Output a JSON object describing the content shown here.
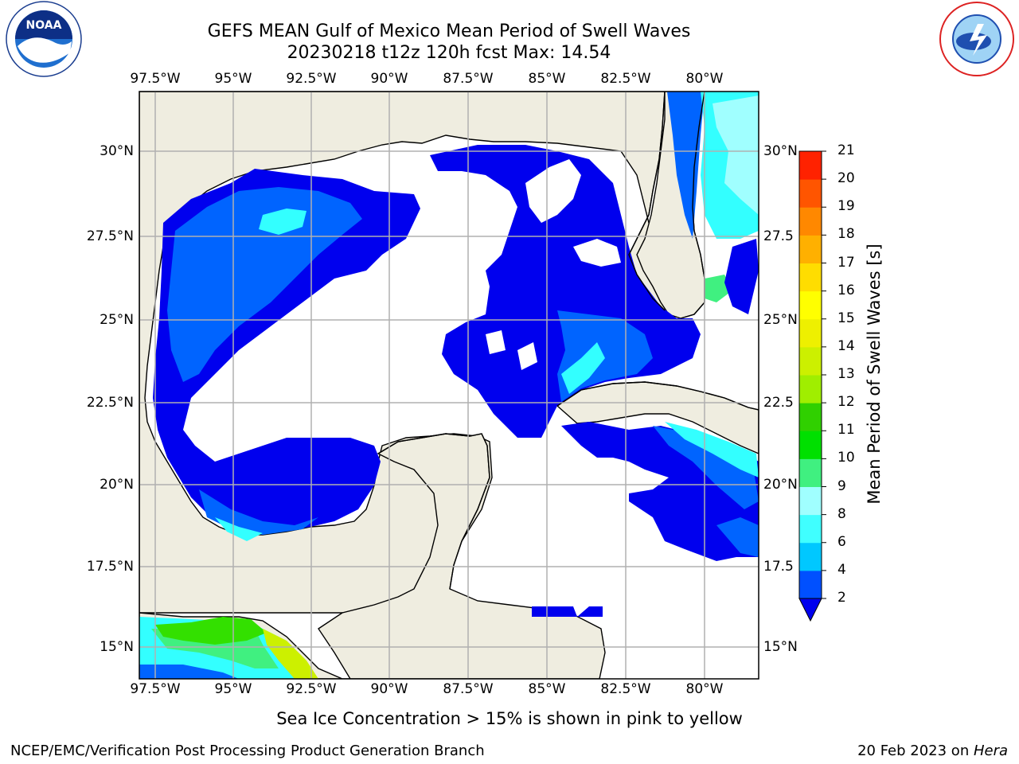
{
  "title": {
    "line1": "GEFS MEAN Gulf of Mexico Mean Period of Swell Waves",
    "line2": "20230218 t12z 120h fcst   Max: 14.54"
  },
  "map": {
    "lon_labels": [
      "97.5°W",
      "95°W",
      "92.5°W",
      "90°W",
      "87.5°W",
      "85°W",
      "82.5°W",
      "80°W"
    ],
    "lat_labels_left": [
      "30°N",
      "27.5°N",
      "25°N",
      "22.5°N",
      "20°N",
      "17.5°N",
      "15°N"
    ],
    "lat_labels_right": [
      "30°N",
      "27.5",
      "25°N",
      "22.5",
      "20°N",
      "17.5",
      "15°N"
    ],
    "colors": {
      "land": "#efede0",
      "ocean_nodata": "#ffffff",
      "gridline": "#b0b0b0",
      "coastline": "#000000"
    },
    "max_value": 14.54
  },
  "colorbar": {
    "label": "Mean Period of Swell Waves [s]",
    "ticks": [
      "2",
      "4",
      "6",
      "8",
      "9",
      "10",
      "11",
      "12",
      "13",
      "14",
      "15",
      "16",
      "17",
      "18",
      "19",
      "20",
      "21"
    ],
    "colors": [
      "#0050ff",
      "#00c8ff",
      "#40ffff",
      "#a0ffff",
      "#40f080",
      "#00e000",
      "#30d000",
      "#a0ee00",
      "#ccf000",
      "#eef000",
      "#ffff00",
      "#ffdd00",
      "#ffb000",
      "#ff8800",
      "#ff5500",
      "#ff2200"
    ],
    "extend_color": "#0000ee"
  },
  "caption": "Sea Ice Concentration > 15% is shown in pink to yellow",
  "footer": {
    "left": "NCEP/EMC/Verification Post Processing Product Generation Branch",
    "right_date": "20 Feb 2023 on ",
    "right_host": "Hera"
  },
  "logos": {
    "noaa": "NOAA",
    "nws": "NATIONAL WEATHER SERVICE"
  }
}
